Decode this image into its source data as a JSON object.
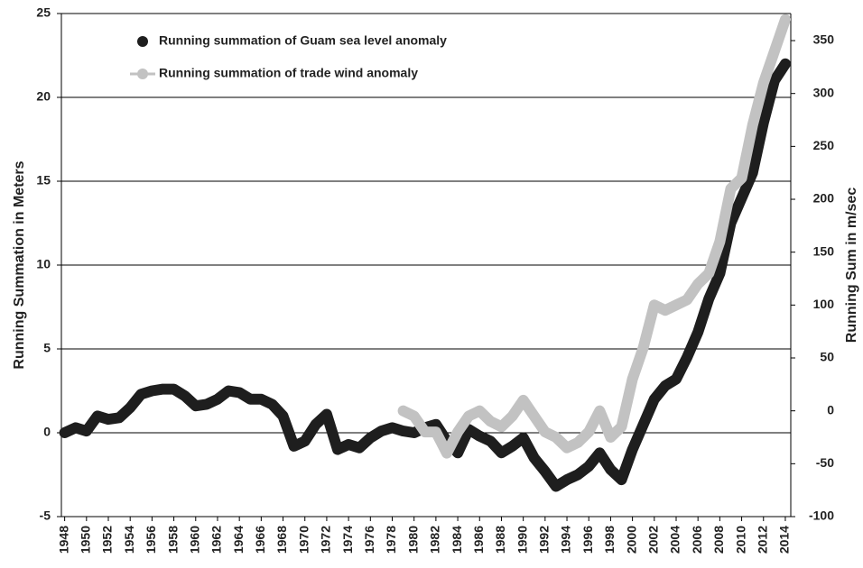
{
  "chart_data": {
    "type": "line",
    "y_label": "Running Summation in Meters",
    "y2_label": "Running Sum in m/sec",
    "x": [
      1948,
      1949,
      1950,
      1951,
      1952,
      1953,
      1954,
      1955,
      1956,
      1957,
      1958,
      1959,
      1960,
      1961,
      1962,
      1963,
      1964,
      1965,
      1966,
      1967,
      1968,
      1969,
      1970,
      1971,
      1972,
      1973,
      1974,
      1975,
      1976,
      1977,
      1978,
      1979,
      1980,
      1981,
      1982,
      1983,
      1984,
      1985,
      1986,
      1987,
      1988,
      1989,
      1990,
      1991,
      1992,
      1993,
      1994,
      1995,
      1996,
      1997,
      1998,
      1999,
      2000,
      2001,
      2002,
      2003,
      2004,
      2005,
      2006,
      2007,
      2008,
      2009,
      2010,
      2011,
      2012,
      2013,
      2014
    ],
    "series": [
      {
        "name": "Running summation of Guam sea level anomaly",
        "color": "#1e1e1e",
        "axis": "y",
        "values": [
          0,
          0.3,
          0.1,
          1.0,
          0.8,
          0.9,
          1.5,
          2.3,
          2.5,
          2.6,
          2.6,
          2.2,
          1.6,
          1.7,
          2.0,
          2.5,
          2.4,
          2.0,
          2.0,
          1.7,
          1.0,
          -0.8,
          -0.5,
          0.5,
          1.1,
          -1.0,
          -0.7,
          -0.9,
          -0.3,
          0.1,
          0.3,
          0.1,
          0.0,
          0.3,
          0.5,
          -0.5,
          -1.2,
          0.2,
          -0.2,
          -0.5,
          -1.2,
          -0.8,
          -0.3,
          -1.5,
          -2.3,
          -3.2,
          -2.8,
          -2.5,
          -2.0,
          -1.2,
          -2.2,
          -2.8,
          -1.0,
          0.5,
          2.0,
          2.8,
          3.2,
          4.5,
          6.0,
          8.0,
          9.5,
          12.5,
          14.0,
          15.5,
          18.5,
          21.0,
          22.0
        ]
      },
      {
        "name": "Running summation of trade wind anomaly",
        "color": "#c2c2c2",
        "axis": "y2",
        "values": [
          null,
          null,
          null,
          null,
          null,
          null,
          null,
          null,
          null,
          null,
          null,
          null,
          null,
          null,
          null,
          null,
          null,
          null,
          null,
          null,
          null,
          null,
          null,
          null,
          null,
          null,
          null,
          null,
          null,
          null,
          null,
          0,
          -5,
          -20,
          -20,
          -40,
          -20,
          -5,
          0,
          -10,
          -15,
          -5,
          10,
          -5,
          -20,
          -25,
          -35,
          -30,
          -20,
          0,
          -25,
          -15,
          30,
          60,
          100,
          95,
          100,
          105,
          120,
          130,
          160,
          210,
          220,
          270,
          310,
          340,
          370
        ]
      }
    ],
    "xlim": [
      1947.7,
      2014.5
    ],
    "xticks": [
      1948,
      1950,
      1952,
      1954,
      1956,
      1958,
      1960,
      1962,
      1964,
      1966,
      1968,
      1970,
      1972,
      1974,
      1976,
      1978,
      1980,
      1982,
      1984,
      1986,
      1988,
      1990,
      1992,
      1994,
      1996,
      1998,
      2000,
      2002,
      2004,
      2006,
      2008,
      2010,
      2012,
      2014
    ],
    "ylim": [
      -5,
      25
    ],
    "yticks": [
      -5,
      0,
      5,
      10,
      15,
      20,
      25
    ],
    "y2lim": [
      -100,
      375.6
    ],
    "y2ticks": [
      -100,
      -50,
      0,
      50,
      100,
      150,
      200,
      250,
      300,
      350
    ],
    "grid": true
  }
}
